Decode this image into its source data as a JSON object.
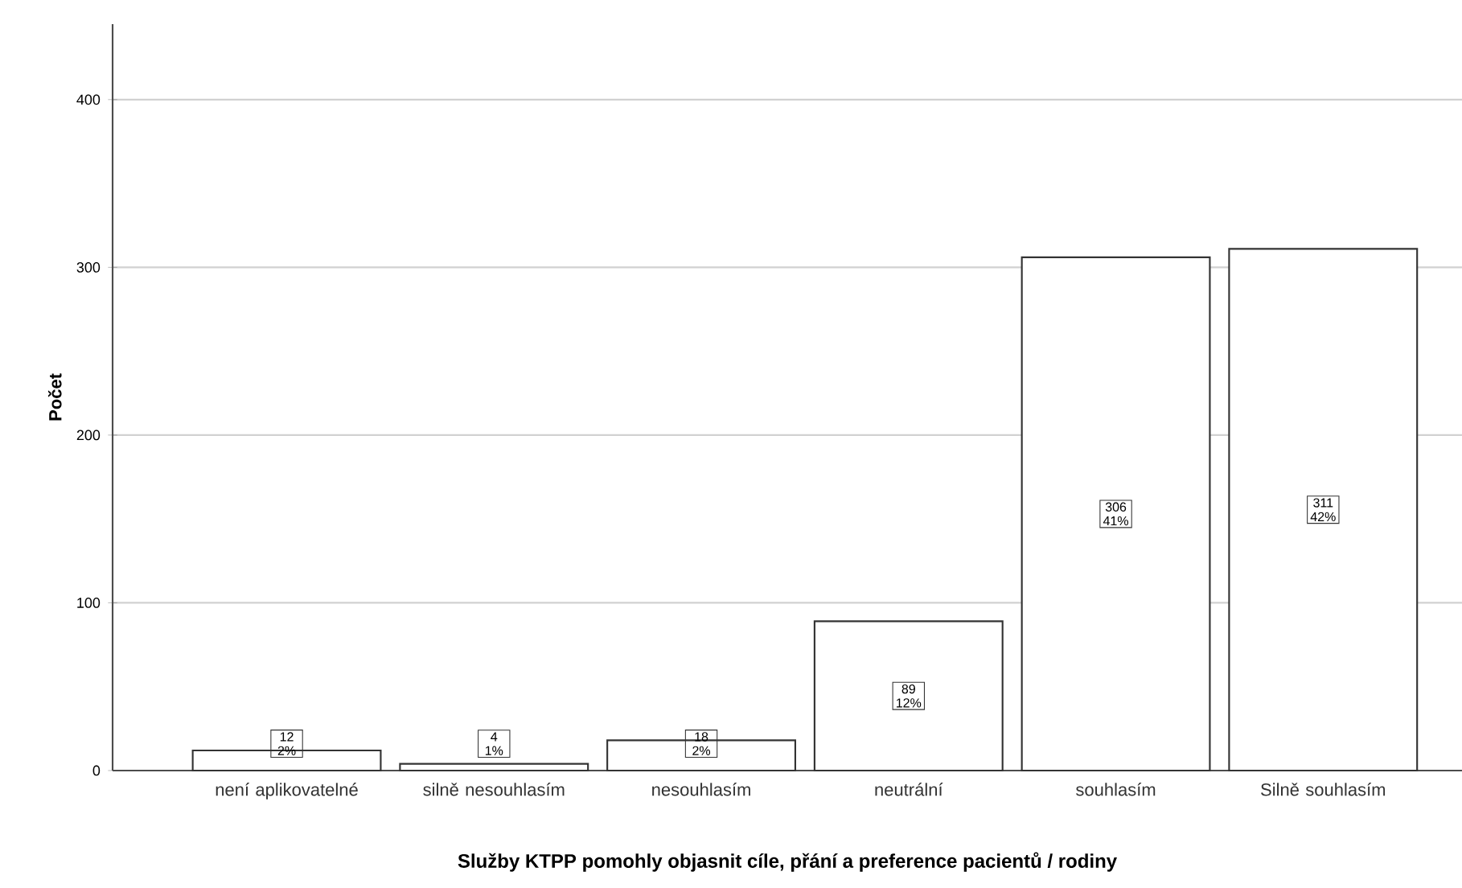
{
  "chart_data": {
    "type": "bar",
    "xlabel": "Služby KTPP pomohly objasnit cíle, přání a preference pacientů / rodiny",
    "ylabel": "Počet",
    "categories": [
      "není aplikovatelné",
      "silně nesouhlasím",
      "nesouhlasím",
      "neutrální",
      "souhlasím",
      "Silně souhlasím"
    ],
    "values": [
      12,
      4,
      18,
      89,
      306,
      311
    ],
    "value_labels": [
      "12 2%",
      "4 1%",
      "18 2%",
      "89 12%",
      "306 41%",
      "311 42%"
    ],
    "color": "#ffffff",
    "ylim": [
      0,
      445
    ],
    "yticks": [
      0,
      100,
      200,
      300,
      400
    ],
    "grid": "y"
  }
}
